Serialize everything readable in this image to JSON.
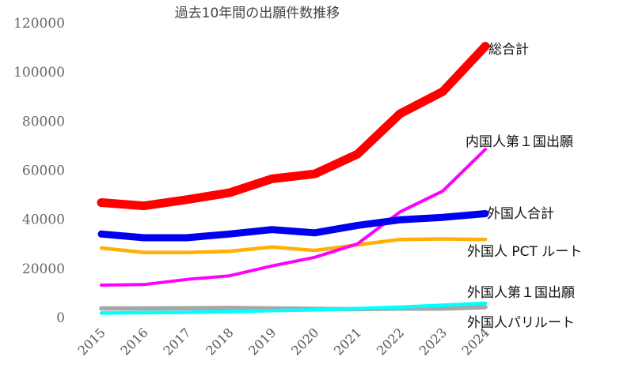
{
  "chart_data": {
    "type": "line",
    "title": "過去10年間の出願件数推移",
    "xlabel": "",
    "ylabel": "",
    "x": [
      "2015",
      "2016",
      "2017",
      "2018",
      "2019",
      "2020",
      "2021",
      "2022",
      "2023",
      "2024"
    ],
    "ylim": [
      0,
      120000
    ],
    "yticks": [
      "0",
      "20000",
      "40000",
      "60000",
      "80000",
      "100000",
      "120000"
    ],
    "grid": false,
    "legend": "inline labels at line ends",
    "series": [
      {
        "name": "総合計",
        "color": "#ff0000",
        "values": [
          46800,
          45500,
          48000,
          50800,
          56500,
          58500,
          66500,
          83000,
          92000,
          110500
        ]
      },
      {
        "name": "内国人第１国出願",
        "color": "#ff00ff",
        "values": [
          13200,
          13400,
          15500,
          17000,
          21000,
          24500,
          30000,
          43000,
          51500,
          68500
        ]
      },
      {
        "name": "外国人合計",
        "color": "#0000ee",
        "values": [
          34000,
          32500,
          32500,
          34000,
          35800,
          34500,
          37500,
          39800,
          40800,
          42300
        ]
      },
      {
        "name": "外国人 PCT ルート",
        "color": "#ffb000",
        "values": [
          28300,
          26500,
          26500,
          27000,
          28700,
          27300,
          29600,
          31800,
          32000,
          31800
        ]
      },
      {
        "name": "外国人第１国出願",
        "color": "#00ffff",
        "values": [
          1800,
          2000,
          2100,
          2400,
          2800,
          3100,
          3600,
          4200,
          5000,
          5800
        ]
      },
      {
        "name": "外国人パリルート",
        "color": "#a6a6a6",
        "values": [
          3700,
          3700,
          3800,
          3900,
          3700,
          3500,
          3400,
          3600,
          3600,
          4200
        ]
      }
    ]
  }
}
